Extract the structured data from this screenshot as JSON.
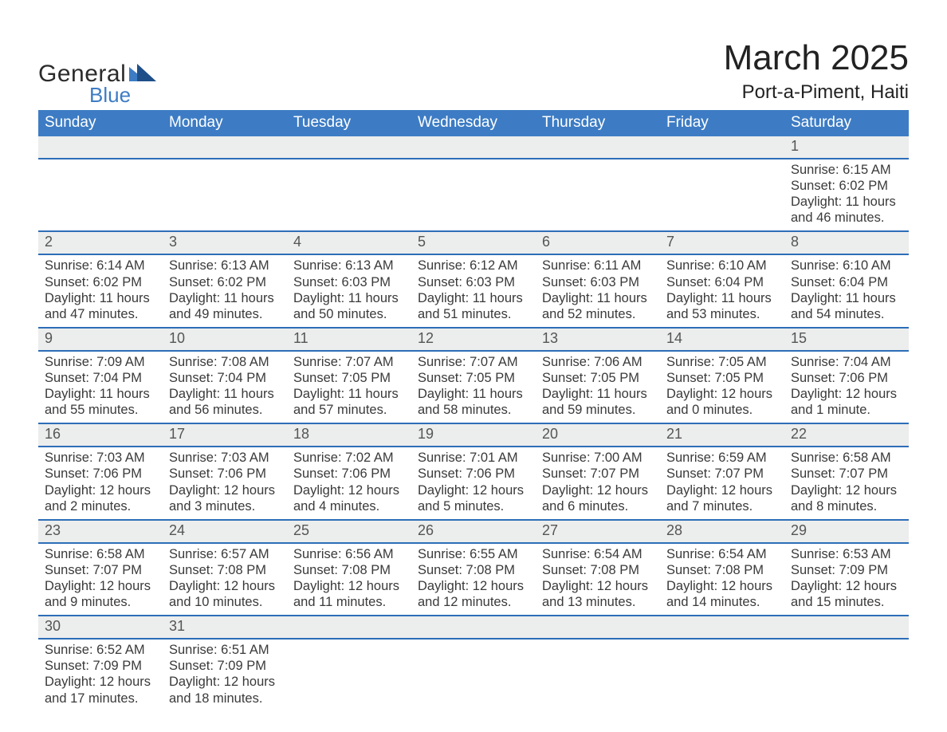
{
  "brand": {
    "word1": "General",
    "word2": "Blue"
  },
  "header": {
    "title": "March 2025",
    "location": "Port-a-Piment, Haiti"
  },
  "colors": {
    "header_blue": "#3d7cc4",
    "row_border_blue": "#2d6eb8",
    "row_stripe": "#eceded",
    "text": "#3a3a3a",
    "logo_blue": "#3d7cc4",
    "logo_dark": "#2b2b2b",
    "background": "#ffffff"
  },
  "typography": {
    "base_font": "Arial",
    "title_size_pt": 33,
    "location_size_pt": 18,
    "header_size_pt": 14,
    "body_size_pt": 12
  },
  "calendar": {
    "columns": [
      "Sunday",
      "Monday",
      "Tuesday",
      "Wednesday",
      "Thursday",
      "Friday",
      "Saturday"
    ],
    "first_day_column_index": 6,
    "days": [
      {
        "n": 1,
        "sunrise": "6:15 AM",
        "sunset": "6:02 PM",
        "daylight": "11 hours and 46 minutes."
      },
      {
        "n": 2,
        "sunrise": "6:14 AM",
        "sunset": "6:02 PM",
        "daylight": "11 hours and 47 minutes."
      },
      {
        "n": 3,
        "sunrise": "6:13 AM",
        "sunset": "6:02 PM",
        "daylight": "11 hours and 49 minutes."
      },
      {
        "n": 4,
        "sunrise": "6:13 AM",
        "sunset": "6:03 PM",
        "daylight": "11 hours and 50 minutes."
      },
      {
        "n": 5,
        "sunrise": "6:12 AM",
        "sunset": "6:03 PM",
        "daylight": "11 hours and 51 minutes."
      },
      {
        "n": 6,
        "sunrise": "6:11 AM",
        "sunset": "6:03 PM",
        "daylight": "11 hours and 52 minutes."
      },
      {
        "n": 7,
        "sunrise": "6:10 AM",
        "sunset": "6:04 PM",
        "daylight": "11 hours and 53 minutes."
      },
      {
        "n": 8,
        "sunrise": "6:10 AM",
        "sunset": "6:04 PM",
        "daylight": "11 hours and 54 minutes."
      },
      {
        "n": 9,
        "sunrise": "7:09 AM",
        "sunset": "7:04 PM",
        "daylight": "11 hours and 55 minutes."
      },
      {
        "n": 10,
        "sunrise": "7:08 AM",
        "sunset": "7:04 PM",
        "daylight": "11 hours and 56 minutes."
      },
      {
        "n": 11,
        "sunrise": "7:07 AM",
        "sunset": "7:05 PM",
        "daylight": "11 hours and 57 minutes."
      },
      {
        "n": 12,
        "sunrise": "7:07 AM",
        "sunset": "7:05 PM",
        "daylight": "11 hours and 58 minutes."
      },
      {
        "n": 13,
        "sunrise": "7:06 AM",
        "sunset": "7:05 PM",
        "daylight": "11 hours and 59 minutes."
      },
      {
        "n": 14,
        "sunrise": "7:05 AM",
        "sunset": "7:05 PM",
        "daylight": "12 hours and 0 minutes."
      },
      {
        "n": 15,
        "sunrise": "7:04 AM",
        "sunset": "7:06 PM",
        "daylight": "12 hours and 1 minute."
      },
      {
        "n": 16,
        "sunrise": "7:03 AM",
        "sunset": "7:06 PM",
        "daylight": "12 hours and 2 minutes."
      },
      {
        "n": 17,
        "sunrise": "7:03 AM",
        "sunset": "7:06 PM",
        "daylight": "12 hours and 3 minutes."
      },
      {
        "n": 18,
        "sunrise": "7:02 AM",
        "sunset": "7:06 PM",
        "daylight": "12 hours and 4 minutes."
      },
      {
        "n": 19,
        "sunrise": "7:01 AM",
        "sunset": "7:06 PM",
        "daylight": "12 hours and 5 minutes."
      },
      {
        "n": 20,
        "sunrise": "7:00 AM",
        "sunset": "7:07 PM",
        "daylight": "12 hours and 6 minutes."
      },
      {
        "n": 21,
        "sunrise": "6:59 AM",
        "sunset": "7:07 PM",
        "daylight": "12 hours and 7 minutes."
      },
      {
        "n": 22,
        "sunrise": "6:58 AM",
        "sunset": "7:07 PM",
        "daylight": "12 hours and 8 minutes."
      },
      {
        "n": 23,
        "sunrise": "6:58 AM",
        "sunset": "7:07 PM",
        "daylight": "12 hours and 9 minutes."
      },
      {
        "n": 24,
        "sunrise": "6:57 AM",
        "sunset": "7:08 PM",
        "daylight": "12 hours and 10 minutes."
      },
      {
        "n": 25,
        "sunrise": "6:56 AM",
        "sunset": "7:08 PM",
        "daylight": "12 hours and 11 minutes."
      },
      {
        "n": 26,
        "sunrise": "6:55 AM",
        "sunset": "7:08 PM",
        "daylight": "12 hours and 12 minutes."
      },
      {
        "n": 27,
        "sunrise": "6:54 AM",
        "sunset": "7:08 PM",
        "daylight": "12 hours and 13 minutes."
      },
      {
        "n": 28,
        "sunrise": "6:54 AM",
        "sunset": "7:08 PM",
        "daylight": "12 hours and 14 minutes."
      },
      {
        "n": 29,
        "sunrise": "6:53 AM",
        "sunset": "7:09 PM",
        "daylight": "12 hours and 15 minutes."
      },
      {
        "n": 30,
        "sunrise": "6:52 AM",
        "sunset": "7:09 PM",
        "daylight": "12 hours and 17 minutes."
      },
      {
        "n": 31,
        "sunrise": "6:51 AM",
        "sunset": "7:09 PM",
        "daylight": "12 hours and 18 minutes."
      }
    ],
    "labels": {
      "sunrise": "Sunrise:",
      "sunset": "Sunset:",
      "daylight": "Daylight:"
    }
  }
}
